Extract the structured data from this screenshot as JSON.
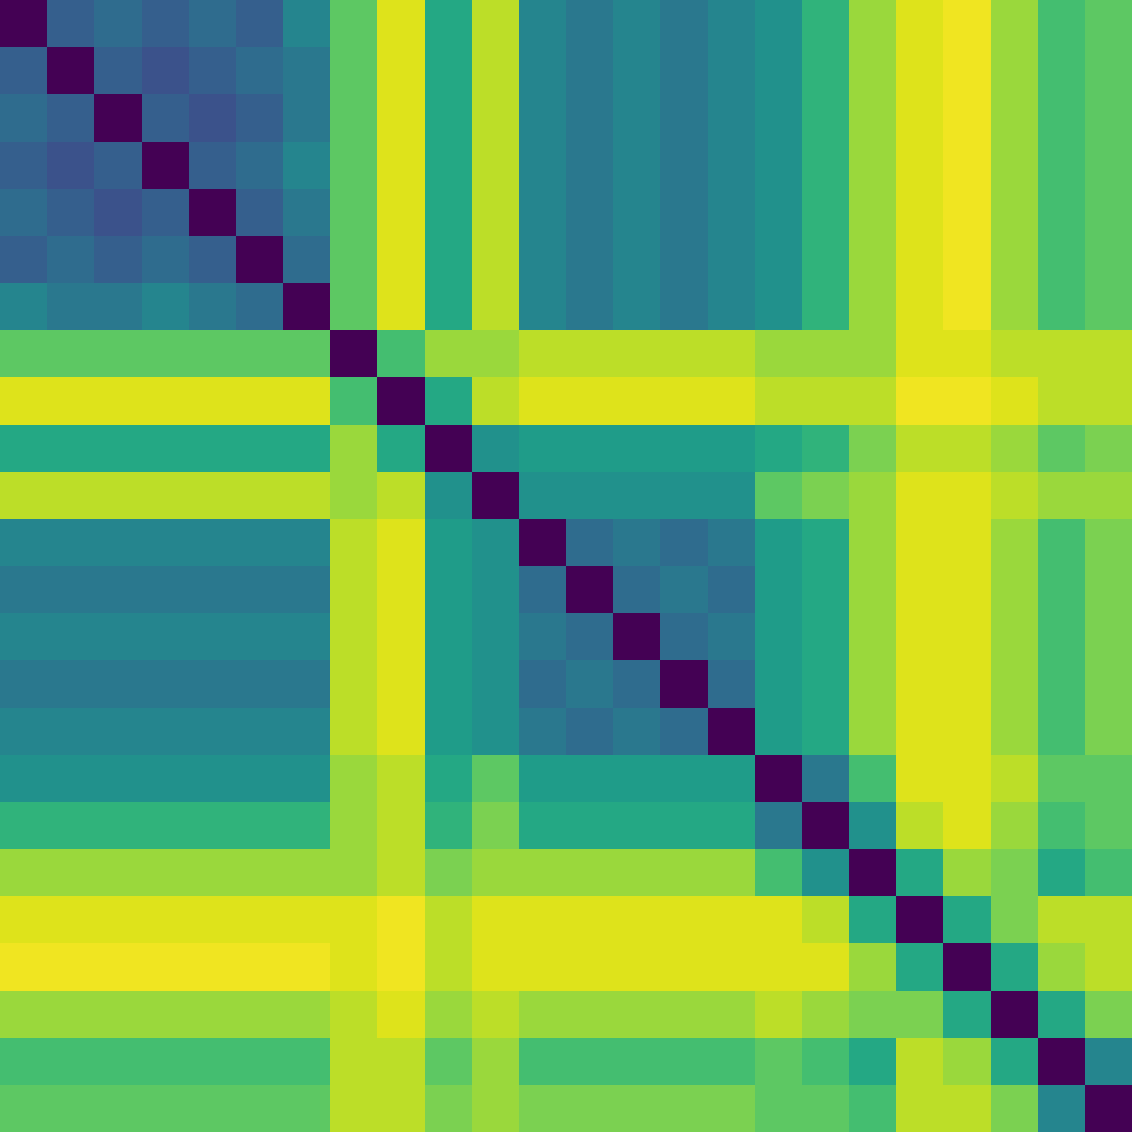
{
  "chart_data": {
    "type": "heatmap",
    "color": "viridis",
    "tick_labels": false,
    "zlim": [
      0,
      1
    ],
    "cells": [
      [
        0,
        0.3,
        0.35,
        0.3,
        0.35,
        0.3,
        0.45,
        0.75,
        0.95,
        0.6,
        0.9,
        0.45,
        0.4,
        0.45,
        0.4,
        0.45,
        0.5,
        0.65,
        0.85,
        0.95,
        0.98,
        0.85,
        0.7,
        0.75
      ],
      [
        0.3,
        0,
        0.3,
        0.25,
        0.3,
        0.35,
        0.4,
        0.75,
        0.95,
        0.6,
        0.9,
        0.45,
        0.4,
        0.45,
        0.4,
        0.45,
        0.5,
        0.65,
        0.85,
        0.95,
        0.98,
        0.85,
        0.7,
        0.75
      ],
      [
        0.35,
        0.3,
        0,
        0.3,
        0.25,
        0.3,
        0.4,
        0.75,
        0.95,
        0.6,
        0.9,
        0.45,
        0.4,
        0.45,
        0.4,
        0.45,
        0.5,
        0.65,
        0.85,
        0.95,
        0.98,
        0.85,
        0.7,
        0.75
      ],
      [
        0.3,
        0.25,
        0.3,
        0,
        0.3,
        0.35,
        0.45,
        0.75,
        0.95,
        0.6,
        0.9,
        0.45,
        0.4,
        0.45,
        0.4,
        0.45,
        0.5,
        0.65,
        0.85,
        0.95,
        0.98,
        0.85,
        0.7,
        0.75
      ],
      [
        0.35,
        0.3,
        0.25,
        0.3,
        0,
        0.3,
        0.4,
        0.75,
        0.95,
        0.6,
        0.9,
        0.45,
        0.4,
        0.45,
        0.4,
        0.45,
        0.5,
        0.65,
        0.85,
        0.95,
        0.98,
        0.85,
        0.7,
        0.75
      ],
      [
        0.3,
        0.35,
        0.3,
        0.35,
        0.3,
        0,
        0.35,
        0.75,
        0.95,
        0.6,
        0.9,
        0.45,
        0.4,
        0.45,
        0.4,
        0.45,
        0.5,
        0.65,
        0.85,
        0.95,
        0.98,
        0.85,
        0.7,
        0.75
      ],
      [
        0.45,
        0.4,
        0.4,
        0.45,
        0.4,
        0.35,
        0,
        0.75,
        0.95,
        0.6,
        0.9,
        0.45,
        0.4,
        0.45,
        0.4,
        0.45,
        0.5,
        0.65,
        0.85,
        0.95,
        0.98,
        0.85,
        0.7,
        0.75
      ],
      [
        0.75,
        0.75,
        0.75,
        0.75,
        0.75,
        0.75,
        0.75,
        0,
        0.7,
        0.85,
        0.85,
        0.9,
        0.9,
        0.9,
        0.9,
        0.9,
        0.85,
        0.85,
        0.85,
        0.95,
        0.95,
        0.9,
        0.9,
        0.9
      ],
      [
        0.95,
        0.95,
        0.95,
        0.95,
        0.95,
        0.95,
        0.95,
        0.7,
        0,
        0.6,
        0.9,
        0.95,
        0.95,
        0.95,
        0.95,
        0.95,
        0.9,
        0.9,
        0.9,
        0.98,
        0.98,
        0.95,
        0.9,
        0.9
      ],
      [
        0.6,
        0.6,
        0.6,
        0.6,
        0.6,
        0.6,
        0.6,
        0.85,
        0.6,
        0,
        0.5,
        0.55,
        0.55,
        0.55,
        0.55,
        0.55,
        0.6,
        0.65,
        0.8,
        0.9,
        0.9,
        0.85,
        0.75,
        0.8
      ],
      [
        0.9,
        0.9,
        0.9,
        0.9,
        0.9,
        0.9,
        0.9,
        0.85,
        0.9,
        0.5,
        0,
        0.5,
        0.5,
        0.5,
        0.5,
        0.5,
        0.75,
        0.8,
        0.85,
        0.95,
        0.95,
        0.9,
        0.85,
        0.85
      ],
      [
        0.45,
        0.45,
        0.45,
        0.45,
        0.45,
        0.45,
        0.45,
        0.9,
        0.95,
        0.55,
        0.5,
        0,
        0.35,
        0.4,
        0.35,
        0.4,
        0.55,
        0.6,
        0.85,
        0.95,
        0.95,
        0.85,
        0.7,
        0.8
      ],
      [
        0.4,
        0.4,
        0.4,
        0.4,
        0.4,
        0.4,
        0.4,
        0.9,
        0.95,
        0.55,
        0.5,
        0.35,
        0,
        0.35,
        0.4,
        0.35,
        0.55,
        0.6,
        0.85,
        0.95,
        0.95,
        0.85,
        0.7,
        0.8
      ],
      [
        0.45,
        0.45,
        0.45,
        0.45,
        0.45,
        0.45,
        0.45,
        0.9,
        0.95,
        0.55,
        0.5,
        0.4,
        0.35,
        0,
        0.35,
        0.4,
        0.55,
        0.6,
        0.85,
        0.95,
        0.95,
        0.85,
        0.7,
        0.8
      ],
      [
        0.4,
        0.4,
        0.4,
        0.4,
        0.4,
        0.4,
        0.4,
        0.9,
        0.95,
        0.55,
        0.5,
        0.35,
        0.4,
        0.35,
        0,
        0.35,
        0.55,
        0.6,
        0.85,
        0.95,
        0.95,
        0.85,
        0.7,
        0.8
      ],
      [
        0.45,
        0.45,
        0.45,
        0.45,
        0.45,
        0.45,
        0.45,
        0.9,
        0.95,
        0.55,
        0.5,
        0.4,
        0.35,
        0.4,
        0.35,
        0,
        0.55,
        0.6,
        0.85,
        0.95,
        0.95,
        0.85,
        0.7,
        0.8
      ],
      [
        0.5,
        0.5,
        0.5,
        0.5,
        0.5,
        0.5,
        0.5,
        0.85,
        0.9,
        0.6,
        0.75,
        0.55,
        0.55,
        0.55,
        0.55,
        0.55,
        0,
        0.4,
        0.7,
        0.95,
        0.95,
        0.9,
        0.75,
        0.75
      ],
      [
        0.65,
        0.65,
        0.65,
        0.65,
        0.65,
        0.65,
        0.65,
        0.85,
        0.9,
        0.65,
        0.8,
        0.6,
        0.6,
        0.6,
        0.6,
        0.6,
        0.4,
        0,
        0.5,
        0.9,
        0.95,
        0.85,
        0.7,
        0.75
      ],
      [
        0.85,
        0.85,
        0.85,
        0.85,
        0.85,
        0.85,
        0.85,
        0.85,
        0.9,
        0.8,
        0.85,
        0.85,
        0.85,
        0.85,
        0.85,
        0.85,
        0.7,
        0.5,
        0,
        0.6,
        0.85,
        0.8,
        0.6,
        0.7
      ],
      [
        0.95,
        0.95,
        0.95,
        0.95,
        0.95,
        0.95,
        0.95,
        0.95,
        0.98,
        0.9,
        0.95,
        0.95,
        0.95,
        0.95,
        0.95,
        0.95,
        0.95,
        0.9,
        0.6,
        0,
        0.6,
        0.8,
        0.9,
        0.9
      ],
      [
        0.98,
        0.98,
        0.98,
        0.98,
        0.98,
        0.98,
        0.98,
        0.95,
        0.98,
        0.9,
        0.95,
        0.95,
        0.95,
        0.95,
        0.95,
        0.95,
        0.95,
        0.95,
        0.85,
        0.6,
        0,
        0.6,
        0.85,
        0.9
      ],
      [
        0.85,
        0.85,
        0.85,
        0.85,
        0.85,
        0.85,
        0.85,
        0.9,
        0.95,
        0.85,
        0.9,
        0.85,
        0.85,
        0.85,
        0.85,
        0.85,
        0.9,
        0.85,
        0.8,
        0.8,
        0.6,
        0,
        0.6,
        0.8
      ],
      [
        0.7,
        0.7,
        0.7,
        0.7,
        0.7,
        0.7,
        0.7,
        0.9,
        0.9,
        0.75,
        0.85,
        0.7,
        0.7,
        0.7,
        0.7,
        0.7,
        0.75,
        0.7,
        0.6,
        0.9,
        0.85,
        0.6,
        0,
        0.45
      ],
      [
        0.75,
        0.75,
        0.75,
        0.75,
        0.75,
        0.75,
        0.75,
        0.9,
        0.9,
        0.8,
        0.85,
        0.8,
        0.8,
        0.8,
        0.8,
        0.8,
        0.75,
        0.75,
        0.7,
        0.9,
        0.9,
        0.8,
        0.45,
        0
      ]
    ]
  }
}
